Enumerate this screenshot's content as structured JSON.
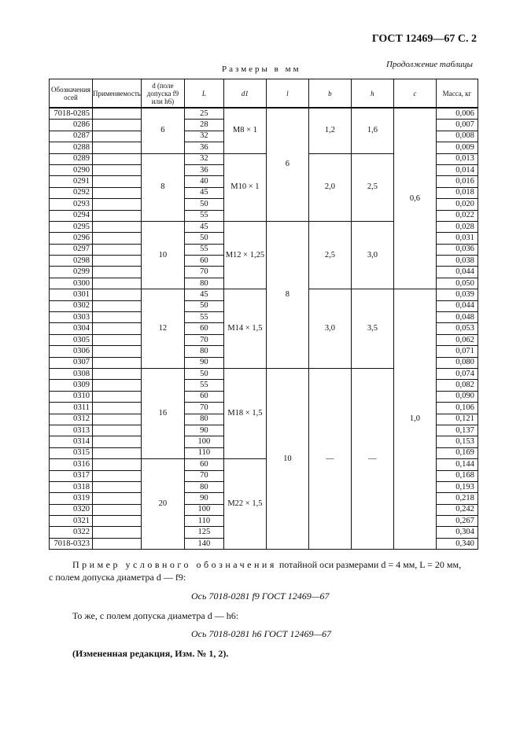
{
  "header": "ГОСТ 12469—67 С. 2",
  "continuation": "Продолжение таблицы",
  "dimensions_note": "Размеры в мм",
  "columns": [
    "Обозначения осей",
    "Применяемость",
    "d (поле допуска f9 или h6)",
    "L",
    "d1",
    "l",
    "b",
    "h",
    "c",
    "Масса, кг"
  ],
  "rows": [
    {
      "code": "7018-0285",
      "L": "25",
      "mass": "0,006"
    },
    {
      "code": "0286",
      "L": "28",
      "mass": "0,007"
    },
    {
      "code": "0287",
      "L": "32",
      "mass": "0,008"
    },
    {
      "code": "0288",
      "L": "36",
      "mass": "0,009"
    },
    {
      "code": "0289",
      "L": "32",
      "mass": "0,013"
    },
    {
      "code": "0290",
      "L": "36",
      "mass": "0,014"
    },
    {
      "code": "0291",
      "L": "40",
      "mass": "0,016"
    },
    {
      "code": "0292",
      "L": "45",
      "mass": "0,018"
    },
    {
      "code": "0293",
      "L": "50",
      "mass": "0,020"
    },
    {
      "code": "0294",
      "L": "55",
      "mass": "0,022"
    },
    {
      "code": "0295",
      "L": "45",
      "mass": "0,028"
    },
    {
      "code": "0296",
      "L": "50",
      "mass": "0,031"
    },
    {
      "code": "0297",
      "L": "55",
      "mass": "0,036"
    },
    {
      "code": "0298",
      "L": "60",
      "mass": "0,038"
    },
    {
      "code": "0299",
      "L": "70",
      "mass": "0,044"
    },
    {
      "code": "0300",
      "L": "80",
      "mass": "0,050"
    },
    {
      "code": "0301",
      "L": "45",
      "mass": "0,039"
    },
    {
      "code": "0302",
      "L": "50",
      "mass": "0,044"
    },
    {
      "code": "0303",
      "L": "55",
      "mass": "0,048"
    },
    {
      "code": "0304",
      "L": "60",
      "mass": "0,053"
    },
    {
      "code": "0305",
      "L": "70",
      "mass": "0,062"
    },
    {
      "code": "0306",
      "L": "80",
      "mass": "0,071"
    },
    {
      "code": "0307",
      "L": "90",
      "mass": "0,080"
    },
    {
      "code": "0308",
      "L": "50",
      "mass": "0,074"
    },
    {
      "code": "0309",
      "L": "55",
      "mass": "0,082"
    },
    {
      "code": "0310",
      "L": "60",
      "mass": "0,090"
    },
    {
      "code": "0311",
      "L": "70",
      "mass": "0,106"
    },
    {
      "code": "0312",
      "L": "80",
      "mass": "0,121"
    },
    {
      "code": "0313",
      "L": "90",
      "mass": "0,137"
    },
    {
      "code": "0314",
      "L": "100",
      "mass": "0,153"
    },
    {
      "code": "0315",
      "L": "110",
      "mass": "0,169"
    },
    {
      "code": "0316",
      "L": "60",
      "mass": "0,144"
    },
    {
      "code": "0317",
      "L": "70",
      "mass": "0,168"
    },
    {
      "code": "0318",
      "L": "80",
      "mass": "0,193"
    },
    {
      "code": "0319",
      "L": "90",
      "mass": "0,218"
    },
    {
      "code": "0320",
      "L": "100",
      "mass": "0,242"
    },
    {
      "code": "0321",
      "L": "110",
      "mass": "0,267"
    },
    {
      "code": "0322",
      "L": "125",
      "mass": "0,304"
    },
    {
      "code": "7018-0323",
      "L": "140",
      "mass": "0,340"
    }
  ],
  "groups": {
    "d": [
      {
        "v": "6",
        "n": 4
      },
      {
        "v": "8",
        "n": 6
      },
      {
        "v": "10",
        "n": 6
      },
      {
        "v": "12",
        "n": 7
      },
      {
        "v": "16",
        "n": 8
      },
      {
        "v": "20",
        "n": 8
      }
    ],
    "d1": [
      {
        "v": "M8 × 1",
        "n": 4
      },
      {
        "v": "M10 × 1",
        "n": 6
      },
      {
        "v": "M12 × 1,25",
        "n": 6
      },
      {
        "v": "M14 × 1,5",
        "n": 7
      },
      {
        "v": "M18 × 1,5",
        "n": 8
      },
      {
        "v": "M22 × 1,5",
        "n": 8
      }
    ],
    "l": [
      {
        "v": "6",
        "n": 10
      },
      {
        "v": "8",
        "n": 13
      },
      {
        "v": "10",
        "n": 16
      }
    ],
    "b": [
      {
        "v": "1,2",
        "n": 4
      },
      {
        "v": "2,0",
        "n": 6
      },
      {
        "v": "2,5",
        "n": 6
      },
      {
        "v": "3,0",
        "n": 7
      },
      {
        "v": "—",
        "n": 16
      }
    ],
    "h": [
      {
        "v": "1,6",
        "n": 4
      },
      {
        "v": "2,5",
        "n": 6
      },
      {
        "v": "3,0",
        "n": 6
      },
      {
        "v": "3,5",
        "n": 7
      },
      {
        "v": "—",
        "n": 16
      }
    ],
    "c": [
      {
        "v": "0,6",
        "n": 16
      },
      {
        "v": "1,0",
        "n": 23
      }
    ]
  },
  "example": {
    "intro_spaced": "Пример условного обозначения",
    "intro_rest": "потайной оси размерами d = 4 мм, L = 20 мм,",
    "line2": "с полем допуска диаметра d — f9:",
    "designation1": "Ось 7018-0281 f9 ГОСТ 12469—67",
    "line3": "То же, с полем допуска диаметра d — h6:",
    "designation2": "Ось 7018-0281 h6 ГОСТ 12469—67",
    "revision": "(Измененная редакция, Изм. № 1, 2)."
  }
}
